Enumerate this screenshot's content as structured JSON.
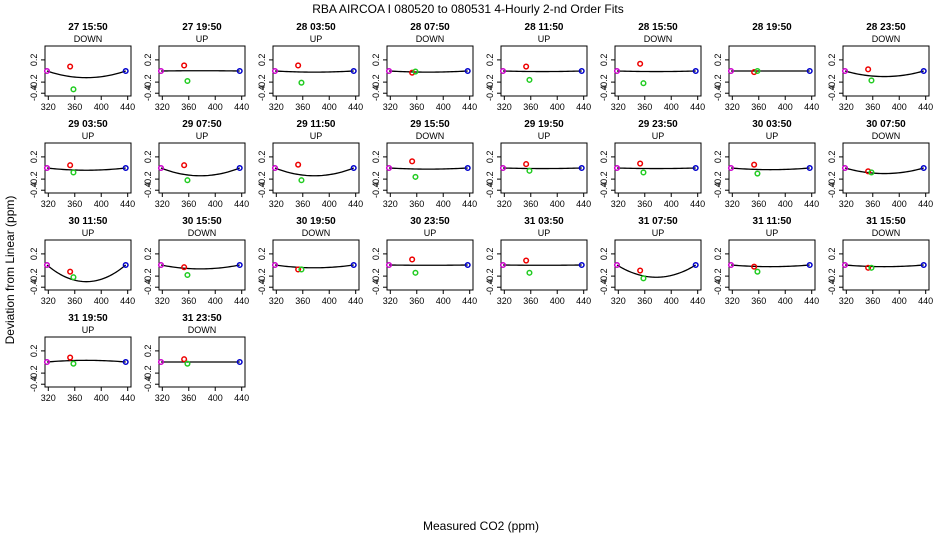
{
  "title": "RBA   AIRCOA I   080520 to 080531   4-Hourly 2-nd Order Fits",
  "xlabel": "Measured CO2 (ppm)",
  "ylabel": "Deviation from Linear (ppm)",
  "colors": {
    "curve": "#000000",
    "low_point": "#cc00cc",
    "high_point": "#0000cc",
    "mid_red": "#ee0000",
    "mid_green": "#22cc22"
  },
  "chart_data": {
    "type": "scatter",
    "xlim": [
      315,
      445
    ],
    "ylim": [
      -0.45,
      0.45
    ],
    "xticks": [
      320,
      360,
      400,
      440
    ],
    "yticks": [
      0.2,
      -0.2,
      -0.4
    ],
    "ytick_labels": [
      "0.2",
      "-0.2",
      "-0.4"
    ],
    "end_points_x": [
      318,
      437
    ],
    "mid_point_x": [
      353,
      358
    ],
    "panels": [
      {
        "title": "27 15:50",
        "direction": "DOWN",
        "a": 0.12,
        "red": 0.08,
        "green": -0.33
      },
      {
        "title": "27 19:50",
        "direction": "UP",
        "a": -0.005,
        "red": 0.1,
        "green": -0.18
      },
      {
        "title": "28 03:50",
        "direction": "UP",
        "a": 0.02,
        "red": 0.1,
        "green": -0.21
      },
      {
        "title": "28 07:50",
        "direction": "DOWN",
        "a": 0.02,
        "red": -0.03,
        "green": -0.01
      },
      {
        "title": "28 11:50",
        "direction": "UP",
        "a": 0.01,
        "red": 0.08,
        "green": -0.16
      },
      {
        "title": "28 15:50",
        "direction": "DOWN",
        "a": 0.01,
        "red": 0.13,
        "green": -0.22
      },
      {
        "title": "28 19:50",
        "direction": "",
        "a": 0.0,
        "red": -0.02,
        "green": 0.0
      },
      {
        "title": "28 23:50",
        "direction": "DOWN",
        "a": 0.1,
        "red": 0.03,
        "green": -0.17
      },
      {
        "title": "29 03:50",
        "direction": "UP",
        "a": 0.04,
        "red": 0.05,
        "green": -0.08
      },
      {
        "title": "29 07:50",
        "direction": "UP",
        "a": 0.14,
        "red": 0.05,
        "green": -0.22
      },
      {
        "title": "29 11:50",
        "direction": "UP",
        "a": 0.14,
        "red": 0.06,
        "green": -0.22
      },
      {
        "title": "29 15:50",
        "direction": "DOWN",
        "a": 0.02,
        "red": 0.12,
        "green": -0.16
      },
      {
        "title": "29 19:50",
        "direction": "UP",
        "a": 0.01,
        "red": 0.07,
        "green": -0.05
      },
      {
        "title": "29 23:50",
        "direction": "UP",
        "a": 0.01,
        "red": 0.08,
        "green": -0.08
      },
      {
        "title": "30 03:50",
        "direction": "UP",
        "a": 0.03,
        "red": 0.06,
        "green": -0.1
      },
      {
        "title": "30 07:50",
        "direction": "DOWN",
        "a": 0.1,
        "red": -0.06,
        "green": -0.08
      },
      {
        "title": "30 11:50",
        "direction": "UP",
        "a": 0.3,
        "red": -0.12,
        "green": -0.22
      },
      {
        "title": "30 15:50",
        "direction": "DOWN",
        "a": 0.07,
        "red": -0.04,
        "green": -0.18
      },
      {
        "title": "30 19:50",
        "direction": "DOWN",
        "a": 0.05,
        "red": -0.08,
        "green": -0.08
      },
      {
        "title": "30 23:50",
        "direction": "UP",
        "a": 0.005,
        "red": 0.1,
        "green": -0.14
      },
      {
        "title": "31 03:50",
        "direction": "UP",
        "a": 0.005,
        "red": 0.08,
        "green": -0.14
      },
      {
        "title": "31 07:50",
        "direction": "UP",
        "a": 0.22,
        "red": -0.1,
        "green": -0.24
      },
      {
        "title": "31 11:50",
        "direction": "UP",
        "a": 0.03,
        "red": -0.03,
        "green": -0.12
      },
      {
        "title": "31 15:50",
        "direction": "DOWN",
        "a": 0.03,
        "red": -0.05,
        "green": -0.05
      },
      {
        "title": "31 19:50",
        "direction": "UP",
        "a": -0.03,
        "red": 0.08,
        "green": -0.03
      },
      {
        "title": "31 23:50",
        "direction": "DOWN",
        "a": 0.0,
        "red": 0.05,
        "green": -0.03
      }
    ]
  }
}
